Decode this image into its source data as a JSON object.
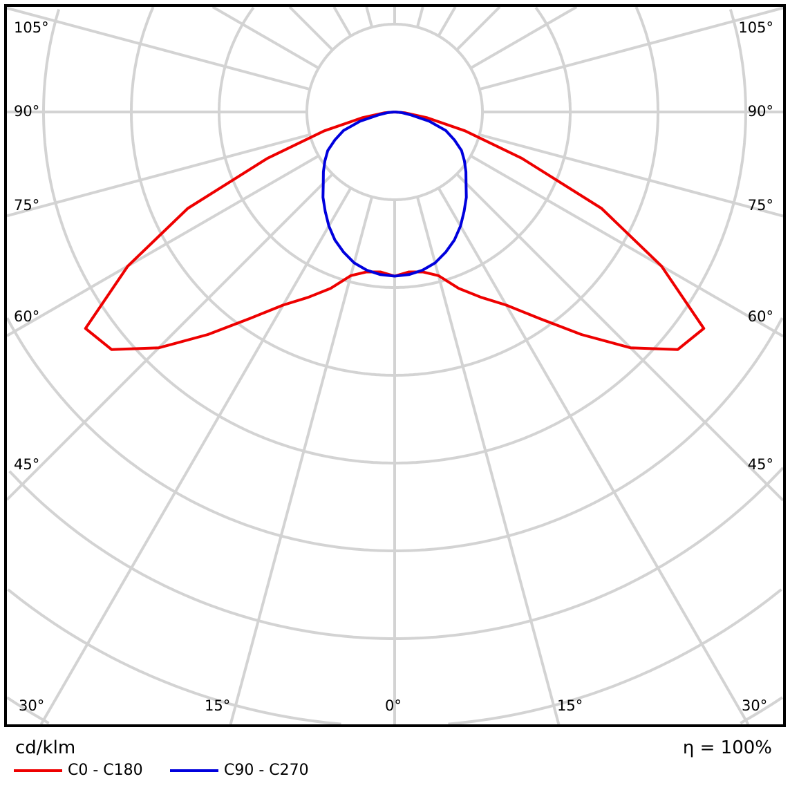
{
  "chart_data": {
    "type": "polar-line",
    "unit_label": "cd/klm",
    "efficiency_label": "η = 100%",
    "ring_count": 7,
    "grid": true,
    "angle_step_deg": 15,
    "angle_labels": {
      "left": [
        "105°",
        "90°",
        "75°",
        "60°",
        "45°"
      ],
      "right": [
        "105°",
        "90°",
        "75°",
        "60°",
        "45°"
      ],
      "bottom": [
        "30°",
        "15°",
        "0°",
        "15°",
        "30°"
      ]
    },
    "gamma_deg": [
      0,
      5,
      10,
      15,
      20,
      25,
      30,
      35,
      40,
      45,
      50,
      55,
      60,
      65,
      70,
      75,
      80,
      85,
      90
    ],
    "series": [
      {
        "name": "C0 - C180",
        "color": "#ee0000",
        "values": [
          1.87,
          1.83,
          1.85,
          1.93,
          2.14,
          2.33,
          2.54,
          2.87,
          3.31,
          3.8,
          4.21,
          4.3,
          3.51,
          2.6,
          1.54,
          0.83,
          0.37,
          0.12,
          0
        ]
      },
      {
        "name": "C90 - C270",
        "color": "#0000dd",
        "values": [
          1.87,
          1.86,
          1.83,
          1.78,
          1.7,
          1.61,
          1.5,
          1.38,
          1.27,
          1.15,
          1.06,
          0.97,
          0.88,
          0.75,
          0.62,
          0.41,
          0.18,
          0.08,
          0
        ]
      }
    ],
    "legend_placement": "bottom-left"
  }
}
